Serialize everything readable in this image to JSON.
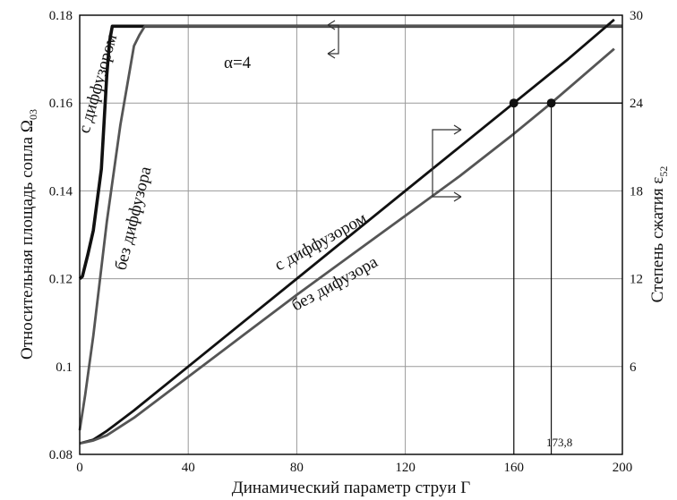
{
  "chart_data": {
    "type": "line",
    "xlabel": "Динамический параметр струи Г",
    "ylabel_left_main": "Относительная площадь сопла Ω",
    "ylabel_left_sub": "03",
    "ylabel_right_main": "Степень сжатия ε",
    "ylabel_right_sub": "52",
    "xlim": [
      0,
      200
    ],
    "ylim_left": [
      0.08,
      0.18
    ],
    "ylim_right": [
      0,
      30
    ],
    "x_ticks": [
      "0",
      "40",
      "80",
      "120",
      "160",
      "200"
    ],
    "y_left_ticks": [
      "0.08",
      "0.1",
      "0.12",
      "0.14",
      "0.16",
      "0.18"
    ],
    "y_right_ticks": [
      "6",
      "12",
      "18",
      "24",
      "30"
    ],
    "grid": true,
    "annotations": {
      "alpha": "α=4",
      "area_with": "с диффузором",
      "area_without": "без диффузора",
      "ratio_with": "с диффузором",
      "ratio_without": "без дифузора",
      "marker_value": "173,8"
    },
    "series": [
      {
        "name": "с диффузором",
        "axis": "left",
        "color": "#111111",
        "x": [
          0,
          1,
          3,
          5,
          8,
          10,
          11,
          12,
          200
        ],
        "y": [
          0.12,
          0.1205,
          0.1255,
          0.131,
          0.145,
          0.1665,
          0.174,
          0.1775,
          0.1775
        ]
      },
      {
        "name": "без диффузора",
        "axis": "left",
        "color": "#555555",
        "x": [
          0,
          2,
          5,
          10,
          15,
          20,
          22,
          24,
          200
        ],
        "y": [
          0.0855,
          0.0935,
          0.107,
          0.133,
          0.155,
          0.173,
          0.1755,
          0.1775,
          0.1775
        ]
      },
      {
        "name": "с диффузором",
        "axis": "right",
        "color": "#111111",
        "x": [
          0,
          5,
          10,
          20,
          40,
          60,
          80,
          100,
          120,
          140,
          160,
          180,
          197
        ],
        "y": [
          0.75,
          1.0,
          1.6,
          3.0,
          6.0,
          9.0,
          12.0,
          15.0,
          18.0,
          21.0,
          24.0,
          27.0,
          29.7
        ]
      },
      {
        "name": "без дифузора",
        "axis": "right",
        "color": "#555555",
        "x": [
          0,
          5,
          10,
          20,
          40,
          60,
          80,
          100,
          120,
          140,
          160,
          173.8,
          197
        ],
        "y": [
          0.75,
          0.95,
          1.3,
          2.5,
          5.3,
          8.1,
          10.9,
          13.6,
          16.3,
          19.0,
          21.9,
          24.0,
          27.7
        ]
      }
    ],
    "markers": [
      {
        "x": 160,
        "y_right": 24
      },
      {
        "x": 173.8,
        "y_right": 24
      }
    ]
  }
}
